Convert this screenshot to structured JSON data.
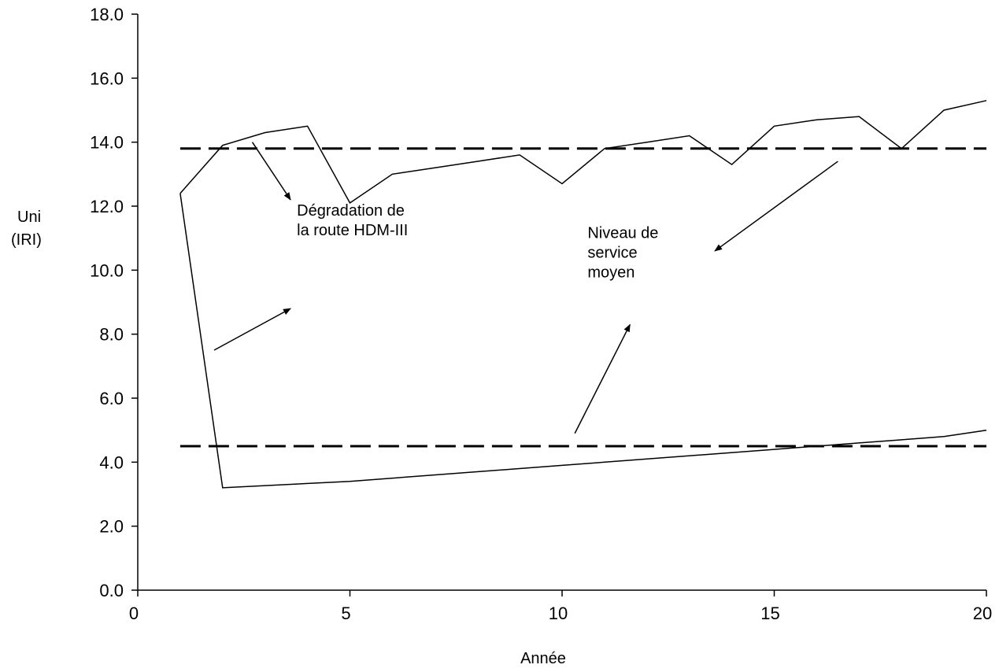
{
  "chart_data": {
    "type": "line",
    "xlabel": "Année",
    "ylabel": [
      "Uni",
      "(IRI)"
    ],
    "xlim": [
      0,
      20
    ],
    "ylim": [
      0,
      18
    ],
    "x_ticks": [
      0,
      5,
      10,
      15,
      20
    ],
    "x_tick_labels": [
      "0",
      "5",
      "10",
      "15",
      "20"
    ],
    "y_ticks": [
      0,
      2,
      4,
      6,
      8,
      10,
      12,
      14,
      16,
      18
    ],
    "y_tick_labels": [
      "0.0",
      "2.0",
      "4.0",
      "6.0",
      "8.0",
      "10.0",
      "12.0",
      "14.0",
      "16.0",
      "18.0"
    ],
    "grid": false,
    "series": [
      {
        "style": "solid",
        "color": "#000000",
        "x": [
          1,
          2,
          3,
          4,
          5,
          6,
          7,
          8,
          9,
          10,
          11,
          12,
          13,
          14,
          15,
          16,
          17,
          18,
          19,
          20
        ],
        "y": [
          12.4,
          13.9,
          14.3,
          14.5,
          12.1,
          13.0,
          13.2,
          13.4,
          13.6,
          12.7,
          13.8,
          14.0,
          14.2,
          13.3,
          14.5,
          14.7,
          14.8,
          13.8,
          15.0,
          15.3
        ]
      },
      {
        "style": "solid",
        "color": "#000000",
        "x": [
          1,
          2,
          5,
          10,
          15,
          16,
          17,
          18,
          19,
          20
        ],
        "y": [
          12.4,
          3.2,
          3.4,
          3.9,
          4.4,
          4.5,
          4.6,
          4.7,
          4.8,
          5.0
        ]
      },
      {
        "style": "dashed",
        "color": "#000000",
        "x": [
          1,
          20
        ],
        "y": [
          13.8,
          13.8
        ]
      },
      {
        "style": "dashed",
        "color": "#000000",
        "x": [
          1,
          20
        ],
        "y": [
          4.5,
          4.5
        ]
      }
    ],
    "annotations": [
      {
        "lines": [
          "Dégradation de",
          "la route HDM-III"
        ],
        "x": 3.75,
        "y": 11.7,
        "arrows": [
          {
            "from": [
              2.7,
              14.0
            ],
            "to": [
              3.6,
              12.2
            ]
          },
          {
            "from": [
              1.8,
              7.5
            ],
            "to": [
              3.6,
              8.8
            ]
          }
        ]
      },
      {
        "lines": [
          "Niveau de",
          "service",
          "moyen"
        ],
        "x": 10.6,
        "y": 11.0,
        "arrows": [
          {
            "from": [
              16.5,
              13.4
            ],
            "to": [
              13.6,
              10.6
            ]
          },
          {
            "from": [
              10.3,
              4.9
            ],
            "to": [
              11.6,
              8.3
            ]
          }
        ]
      }
    ]
  }
}
